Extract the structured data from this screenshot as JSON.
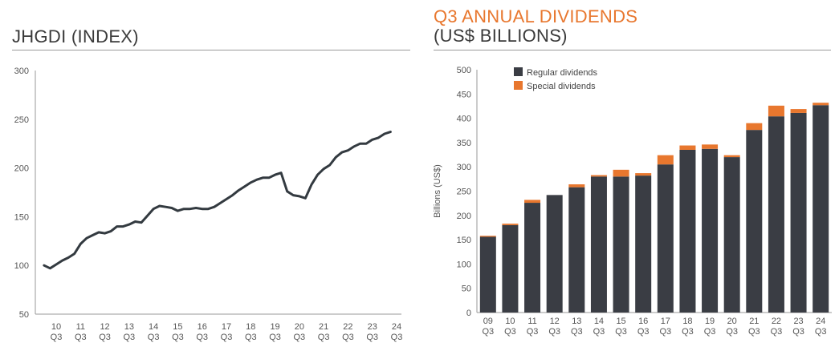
{
  "chart_data": [
    {
      "type": "line",
      "title": "JHGDI (INDEX)",
      "xlabel": "",
      "ylabel": "",
      "ylim": [
        50,
        300
      ],
      "yticks": [
        50,
        100,
        150,
        200,
        250,
        300
      ],
      "x_tick_labels": [
        {
          "year": "10",
          "quarter": "Q3"
        },
        {
          "year": "11",
          "quarter": "Q3"
        },
        {
          "year": "12",
          "quarter": "Q3"
        },
        {
          "year": "13",
          "quarter": "Q3"
        },
        {
          "year": "14",
          "quarter": "Q3"
        },
        {
          "year": "15",
          "quarter": "Q3"
        },
        {
          "year": "16",
          "quarter": "Q3"
        },
        {
          "year": "17",
          "quarter": "Q3"
        },
        {
          "year": "18",
          "quarter": "Q3"
        },
        {
          "year": "19",
          "quarter": "Q3"
        },
        {
          "year": "20",
          "quarter": "Q3"
        },
        {
          "year": "21",
          "quarter": "Q3"
        },
        {
          "year": "22",
          "quarter": "Q3"
        },
        {
          "year": "23",
          "quarter": "Q3"
        },
        {
          "year": "24",
          "quarter": "Q3"
        }
      ],
      "x_start": 2009.5,
      "x_step": 0.25,
      "series": [
        {
          "name": "JHGDI",
          "color": "#333a40",
          "values": [
            100,
            97,
            101,
            105,
            108,
            112,
            122,
            128,
            131,
            134,
            133,
            135,
            140,
            140,
            142,
            145,
            144,
            151,
            158,
            161,
            160,
            159,
            156,
            158,
            158,
            159,
            158,
            158,
            160,
            164,
            168,
            172,
            177,
            181,
            185,
            188,
            190,
            190,
            193,
            195,
            176,
            172,
            171,
            169,
            183,
            193,
            199,
            203,
            211,
            216,
            218,
            222,
            225,
            225,
            229,
            231,
            235,
            237
          ]
        }
      ]
    },
    {
      "type": "bar",
      "title": "Q3 ANNUAL DIVIDENDS (US$ BILLIONS)",
      "title_line1": "Q3 ANNUAL DIVIDENDS",
      "title_line2": "(US$ BILLIONS)",
      "xlabel": "",
      "ylabel": "Billions (US$)",
      "ylim": [
        0,
        500
      ],
      "yticks": [
        0,
        50,
        100,
        150,
        200,
        250,
        300,
        350,
        400,
        450,
        500
      ],
      "categories": [
        {
          "year": "09",
          "quarter": "Q3"
        },
        {
          "year": "10",
          "quarter": "Q3"
        },
        {
          "year": "11",
          "quarter": "Q3"
        },
        {
          "year": "12",
          "quarter": "Q3"
        },
        {
          "year": "13",
          "quarter": "Q3"
        },
        {
          "year": "14",
          "quarter": "Q3"
        },
        {
          "year": "15",
          "quarter": "Q3"
        },
        {
          "year": "16",
          "quarter": "Q3"
        },
        {
          "year": "17",
          "quarter": "Q3"
        },
        {
          "year": "18",
          "quarter": "Q3"
        },
        {
          "year": "19",
          "quarter": "Q3"
        },
        {
          "year": "20",
          "quarter": "Q3"
        },
        {
          "year": "21",
          "quarter": "Q3"
        },
        {
          "year": "22",
          "quarter": "Q3"
        },
        {
          "year": "23",
          "quarter": "Q3"
        },
        {
          "year": "24",
          "quarter": "Q3"
        }
      ],
      "stacked": true,
      "series": [
        {
          "name": "Regular dividends",
          "color": "#3a3d44",
          "values": [
            156,
            180,
            226,
            242,
            258,
            280,
            280,
            282,
            305,
            335,
            337,
            320,
            376,
            404,
            411,
            427
          ]
        },
        {
          "name": "Special dividends",
          "color": "#e8772e",
          "values": [
            2,
            3,
            6,
            0,
            6,
            3,
            14,
            5,
            19,
            9,
            9,
            4,
            14,
            22,
            8,
            5
          ]
        }
      ],
      "legend_position": "top-left"
    }
  ]
}
